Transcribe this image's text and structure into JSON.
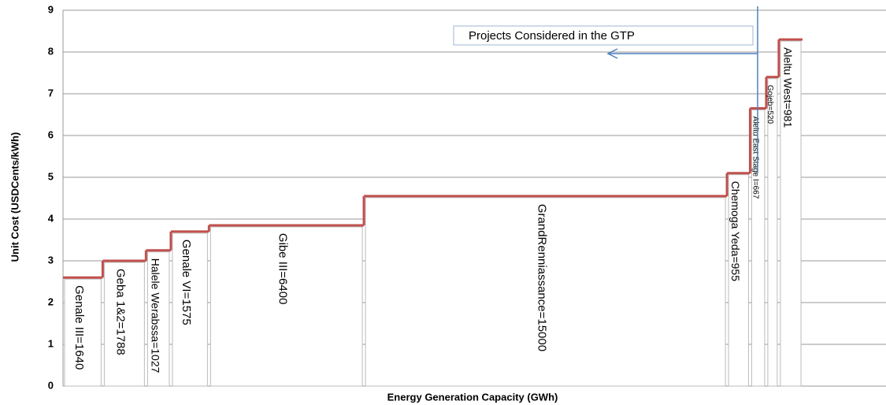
{
  "chart_data": {
    "type": "step-bar",
    "xlabel": "Energy Generation Capacity  (GWh)",
    "ylabel": "Unit Cost (USDCents/kWh)",
    "annotation": "Projects Considered in the GTP",
    "labels": [
      "Genale III=1640",
      "Geba 1&2=1788",
      "Halele Werabssa=1027",
      "Genale VI=1575",
      "Gibe III=6400",
      "GrandRenniassance=15000",
      "Chemoga Yeda=955",
      "Aleltu East Stage I=667",
      "Gojeb=520",
      "Aleltu West=981"
    ],
    "capacities": [
      1640,
      1788,
      1027,
      1575,
      6400,
      15000,
      955,
      667,
      520,
      981
    ],
    "values": [
      2.6,
      3.0,
      3.25,
      3.7,
      3.85,
      4.55,
      5.1,
      6.65,
      7.4,
      8.3
    ],
    "color": "#c0504d",
    "xlim": [
      0,
      34000
    ],
    "ylim": [
      0,
      9
    ],
    "yticks": [
      0,
      1,
      2,
      3,
      4,
      5,
      6,
      7,
      8,
      9
    ],
    "grid": true
  }
}
